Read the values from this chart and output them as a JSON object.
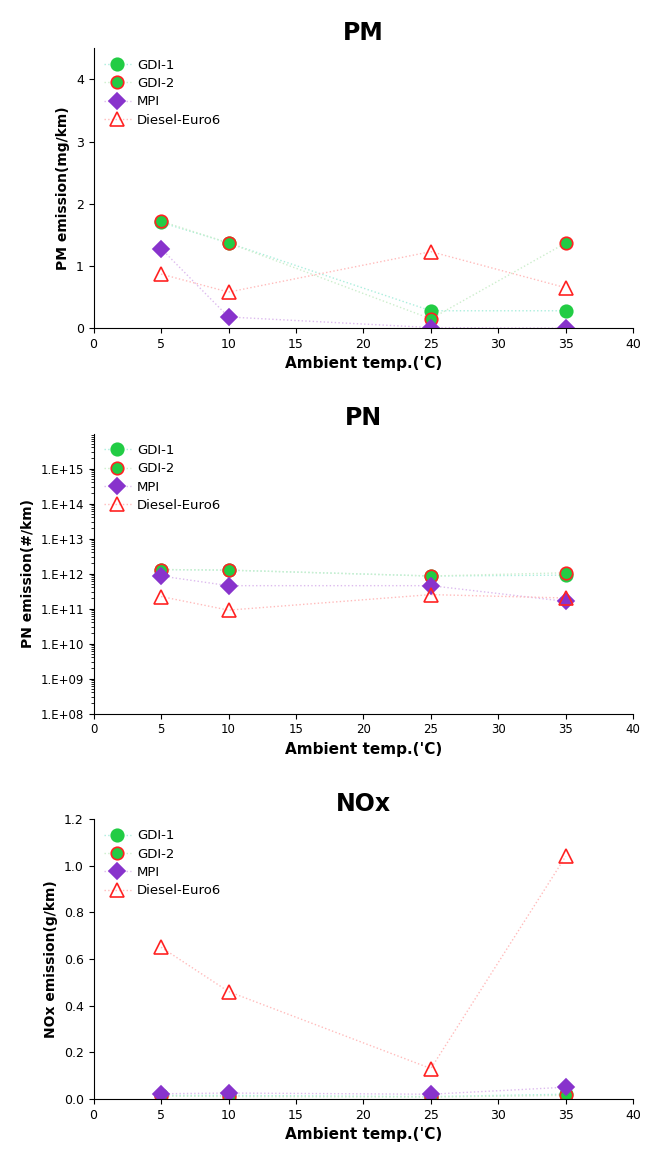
{
  "temps": [
    5,
    10,
    25,
    35
  ],
  "PM": {
    "title": "PM",
    "ylabel": "PM emission(mg/km)",
    "ylim": [
      0,
      4.5
    ],
    "yticks": [
      0,
      1,
      2,
      3,
      4
    ],
    "GDI1": [
      1.7,
      1.37,
      0.28,
      0.28
    ],
    "GDI2": [
      1.72,
      1.37,
      0.15,
      1.37
    ],
    "MPI": [
      1.28,
      0.18,
      0.01,
      0.0
    ],
    "Diesel": [
      0.87,
      0.58,
      1.23,
      0.65
    ]
  },
  "PN": {
    "title": "PN",
    "ylabel": "PN emission(#/km)",
    "GDI1": [
      1300000000000.0,
      1250000000000.0,
      850000000000.0,
      900000000000.0
    ],
    "GDI2": [
      1300000000000.0,
      1250000000000.0,
      850000000000.0,
      1050000000000.0
    ],
    "MPI": [
      850000000000.0,
      450000000000.0,
      450000000000.0,
      160000000000.0
    ],
    "Diesel": [
      220000000000.0,
      90000000000.0,
      250000000000.0,
      200000000000.0
    ]
  },
  "NOx": {
    "title": "NOx",
    "ylabel": "NOx emission(g/km)",
    "ylim": [
      0,
      1.2
    ],
    "yticks": [
      0,
      0.2,
      0.4,
      0.6,
      0.8,
      1.0,
      1.2
    ],
    "GDI1": [
      0.015,
      0.015,
      0.01,
      0.02
    ],
    "GDI2": [
      0.012,
      0.01,
      0.008,
      0.015
    ],
    "MPI": [
      0.022,
      0.025,
      0.02,
      0.05
    ],
    "Diesel": [
      0.65,
      0.46,
      0.13,
      1.04
    ]
  },
  "marker_colors": {
    "GDI1": "#22cc44",
    "GDI2": "#22cc44",
    "MPI": "#8833cc",
    "Diesel": "#ff2222"
  },
  "marker_edge_colors": {
    "GDI1": "#22cc44",
    "GDI2": "#ff2222",
    "MPI": "#8833cc",
    "Diesel": "#ff2222"
  },
  "line_colors": {
    "GDI1": "#aaeedd",
    "GDI2": "#cceecc",
    "MPI": "#ddbbee",
    "Diesel": "#ffbbbb"
  },
  "legend_labels": [
    "GDI-1",
    "GDI-2",
    "MPI",
    "Diesel-Euro6"
  ],
  "xlabel": "Ambient temp.('C)",
  "xlim": [
    0,
    40
  ],
  "xticks": [
    0,
    5,
    10,
    15,
    20,
    25,
    30,
    35,
    40
  ]
}
